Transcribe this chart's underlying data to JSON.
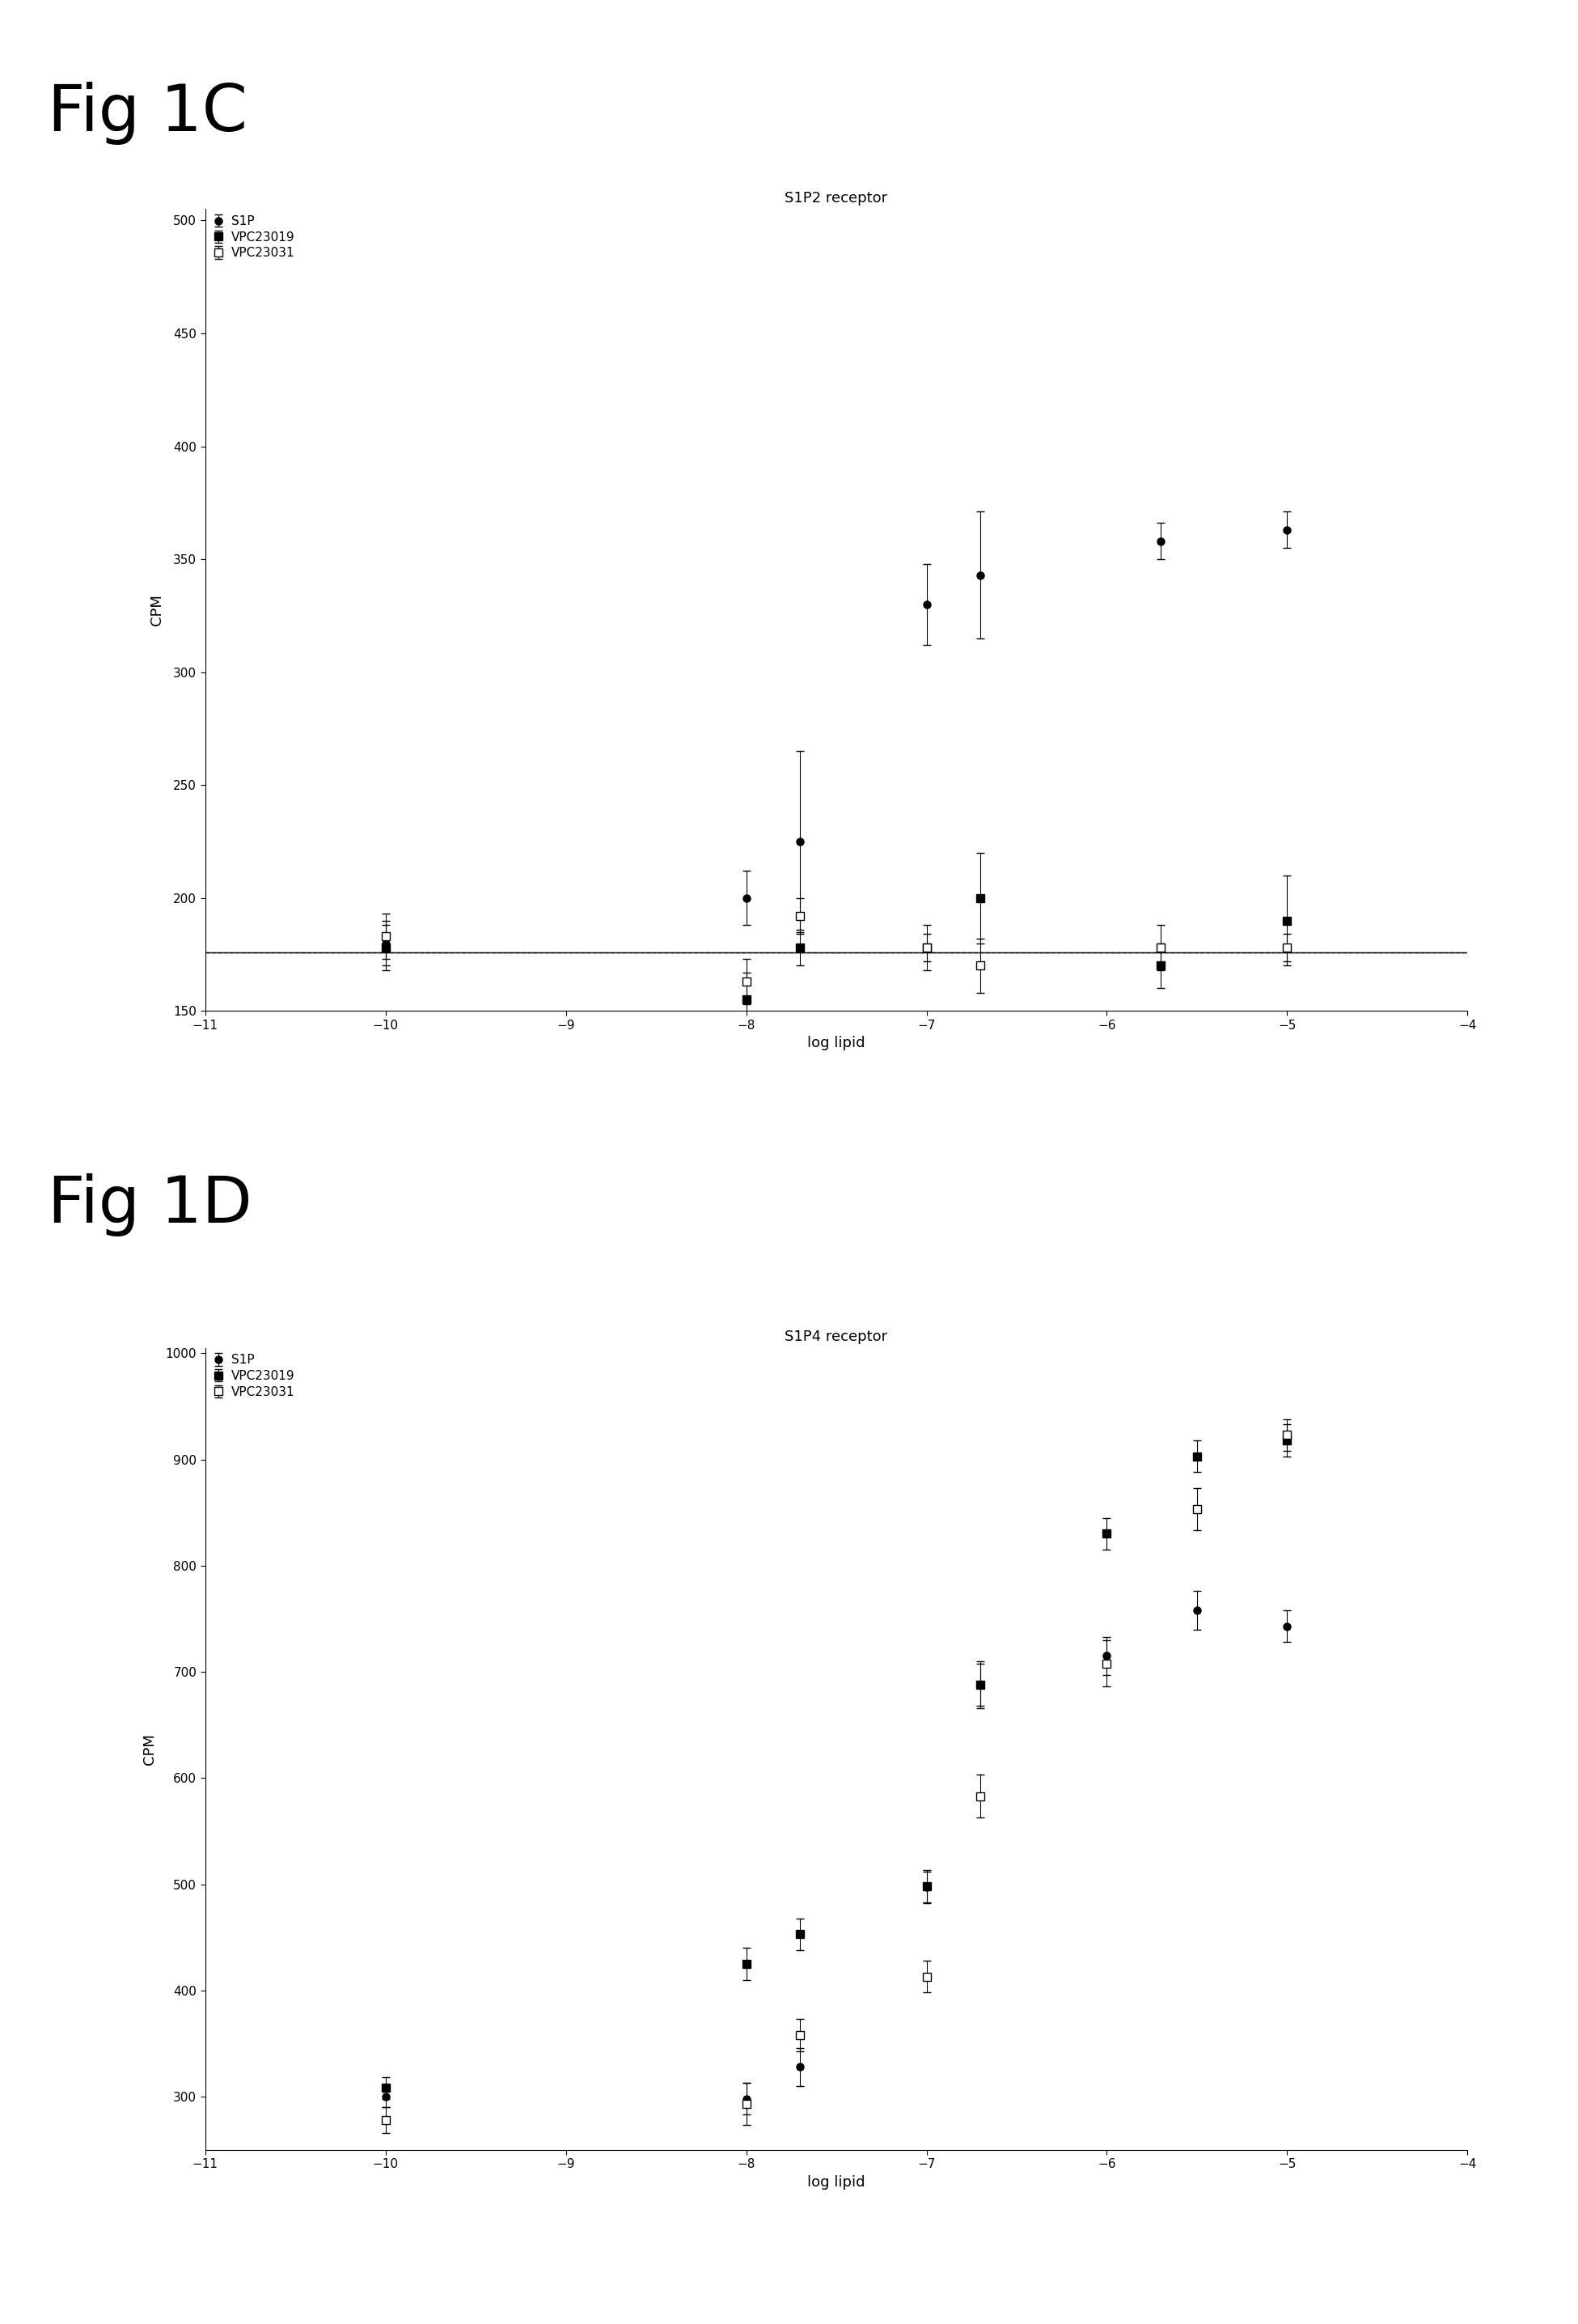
{
  "fig1c_title": "S1P2 receptor",
  "fig1d_title": "S1P4 receptor",
  "xlabel": "log lipid",
  "ylabel": "CPM",
  "legend_labels": [
    "S1P",
    "VPC23019",
    "VPC23031"
  ],
  "c_s1p_x": [
    -10,
    -8,
    -7.7,
    -7,
    -6.7,
    -5.7,
    -5
  ],
  "c_s1p_y": [
    180,
    200,
    225,
    330,
    343,
    358,
    363
  ],
  "c_s1p_yerr": [
    10,
    12,
    40,
    18,
    28,
    8,
    8
  ],
  "c_vpc23019_x": [
    -10,
    -8,
    -7.7,
    -7,
    -6.7,
    -5.7,
    -5
  ],
  "c_vpc23019_y": [
    178,
    155,
    178,
    178,
    200,
    170,
    190
  ],
  "c_vpc23019_yerr": [
    10,
    12,
    8,
    10,
    20,
    10,
    20
  ],
  "c_vpc23031_x": [
    -10,
    -8,
    -7.7,
    -7,
    -6.7,
    -5.7,
    -5
  ],
  "c_vpc23031_y": [
    183,
    163,
    192,
    178,
    170,
    178,
    178
  ],
  "c_vpc23031_yerr": [
    10,
    10,
    8,
    6,
    12,
    10,
    6
  ],
  "c_ylim": [
    150,
    505
  ],
  "c_yticks": [
    150,
    200,
    250,
    300,
    350,
    400,
    450,
    500
  ],
  "d_s1p_x": [
    -10,
    -8,
    -7.7,
    -7,
    -6.7,
    -6,
    -5.5,
    -5
  ],
  "d_s1p_y": [
    300,
    298,
    328,
    497,
    688,
    715,
    758,
    743
  ],
  "d_s1p_yerr": [
    10,
    15,
    18,
    15,
    22,
    18,
    18,
    15
  ],
  "d_vpc23019_x": [
    -10,
    -8,
    -7.7,
    -7,
    -6.7,
    -6,
    -5.5,
    -5
  ],
  "d_vpc23019_y": [
    308,
    425,
    453,
    498,
    688,
    830,
    903,
    918
  ],
  "d_vpc23019_yerr": [
    10,
    15,
    15,
    15,
    20,
    15,
    15,
    15
  ],
  "d_vpc23031_x": [
    -10,
    -8,
    -7.7,
    -7,
    -6.7,
    -6,
    -5.5,
    -5
  ],
  "d_vpc23031_y": [
    278,
    293,
    358,
    413,
    583,
    708,
    853,
    923
  ],
  "d_vpc23031_yerr": [
    12,
    20,
    15,
    15,
    20,
    22,
    20,
    15
  ],
  "d_ylim": [
    250,
    1005
  ],
  "d_yticks": [
    300,
    400,
    500,
    600,
    700,
    800,
    900,
    1000
  ],
  "xlim": [
    -11,
    -4
  ],
  "xticks": [
    -11,
    -10,
    -9,
    -8,
    -7,
    -6,
    -5,
    -4
  ],
  "fig1c_label": "Fig 1C",
  "fig1d_label": "Fig 1D"
}
